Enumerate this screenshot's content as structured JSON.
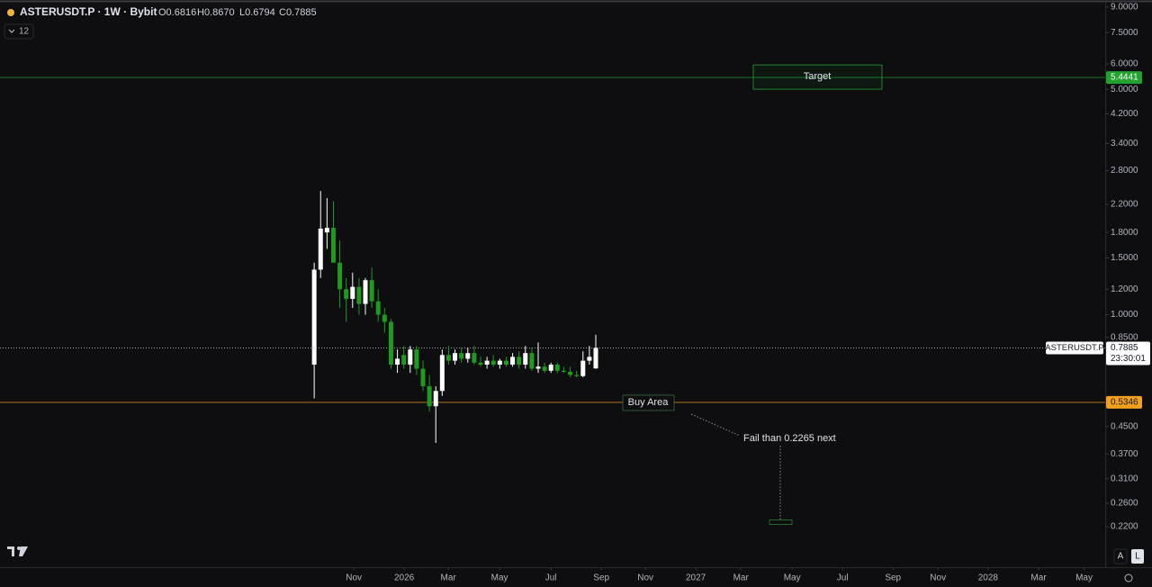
{
  "header": {
    "title": "ASTERUSDT.P · 1W · Bybit",
    "ohlc": [
      "O0.6816",
      "H0.8670",
      "L0.6794",
      "C0.7885"
    ],
    "indicator": "12"
  },
  "chart_data": {
    "type": "candlestick",
    "log_scale": true,
    "open": [
      0.7,
      1.38,
      1.8,
      1.86,
      1.45,
      1.2,
      1.12,
      1.22,
      1.08,
      1.28,
      1.1,
      1.0,
      0.95,
      0.7,
      0.75,
      0.7,
      0.78,
      0.68,
      0.6,
      0.52,
      0.58,
      0.75,
      0.72,
      0.76,
      0.73,
      0.76,
      0.71,
      0.7,
      0.72,
      0.7,
      0.72,
      0.7,
      0.74,
      0.7,
      0.76,
      0.68,
      0.69,
      0.67,
      0.7,
      0.67,
      0.665,
      0.65,
      0.645,
      0.72,
      0.6816
    ],
    "high": [
      1.45,
      2.42,
      2.3,
      2.25,
      1.7,
      1.3,
      1.35,
      1.3,
      1.3,
      1.4,
      1.2,
      1.05,
      0.97,
      0.78,
      0.8,
      0.8,
      0.8,
      0.72,
      0.65,
      0.6,
      0.78,
      0.8,
      0.78,
      0.79,
      0.79,
      0.8,
      0.74,
      0.74,
      0.75,
      0.73,
      0.74,
      0.76,
      0.77,
      0.8,
      0.79,
      0.82,
      0.71,
      0.71,
      0.71,
      0.69,
      0.69,
      0.67,
      0.77,
      0.8,
      0.867
    ],
    "low": [
      0.55,
      1.3,
      1.6,
      1.5,
      1.05,
      0.95,
      1.05,
      1.0,
      1.0,
      1.05,
      0.95,
      0.88,
      0.68,
      0.66,
      0.68,
      0.66,
      0.65,
      0.58,
      0.5,
      0.4,
      0.56,
      0.7,
      0.7,
      0.71,
      0.71,
      0.7,
      0.69,
      0.68,
      0.69,
      0.68,
      0.69,
      0.69,
      0.68,
      0.68,
      0.67,
      0.66,
      0.66,
      0.66,
      0.66,
      0.66,
      0.64,
      0.64,
      0.64,
      0.7,
      0.6794
    ],
    "close": [
      1.38,
      1.85,
      1.86,
      1.45,
      1.2,
      1.12,
      1.22,
      1.08,
      1.28,
      1.1,
      1.0,
      0.95,
      0.7,
      0.73,
      0.7,
      0.78,
      0.68,
      0.6,
      0.52,
      0.58,
      0.75,
      0.72,
      0.76,
      0.73,
      0.76,
      0.71,
      0.7,
      0.72,
      0.7,
      0.72,
      0.7,
      0.74,
      0.7,
      0.76,
      0.68,
      0.69,
      0.67,
      0.7,
      0.67,
      0.665,
      0.65,
      0.645,
      0.72,
      0.74,
      0.7885
    ],
    "up_color": "#ffffff",
    "down_color": "#1f9a1f",
    "xlim": [
      -49.1,
      123.6
    ],
    "xticks": [
      {
        "value": 6.19,
        "label": "Nov"
      },
      {
        "value": 14.06,
        "label": "2026"
      },
      {
        "value": 20.96,
        "label": "Mar"
      },
      {
        "value": 28.97,
        "label": "May"
      },
      {
        "value": 36.99,
        "label": "Jul"
      },
      {
        "value": 44.87,
        "label": "Sep"
      },
      {
        "value": 51.76,
        "label": "Nov"
      },
      {
        "value": 59.63,
        "label": "2027"
      },
      {
        "value": 66.67,
        "label": "Mar"
      },
      {
        "value": 74.68,
        "label": "May"
      },
      {
        "value": 82.56,
        "label": "Jul"
      },
      {
        "value": 90.44,
        "label": "Sep"
      },
      {
        "value": 97.47,
        "label": "Nov"
      },
      {
        "value": 105.3,
        "label": "2028"
      },
      {
        "value": 113.2,
        "label": "Mar"
      },
      {
        "value": 120.3,
        "label": "May"
      }
    ],
    "ylim": [
      0.1647,
      9.47
    ],
    "yticks": [
      {
        "value": 9,
        "label": "9.0000"
      },
      {
        "value": 7.5,
        "label": "7.5000"
      },
      {
        "value": 6,
        "label": "6.0000"
      },
      {
        "value": 5,
        "label": "5.0000"
      },
      {
        "value": 4.2,
        "label": "4.2000"
      },
      {
        "value": 3.4,
        "label": "3.4000"
      },
      {
        "value": 2.8,
        "label": "2.8000"
      },
      {
        "value": 2.2,
        "label": "2.2000"
      },
      {
        "value": 1.8,
        "label": "1.8000"
      },
      {
        "value": 1.5,
        "label": "1.5000"
      },
      {
        "value": 1.2,
        "label": "1.2000"
      },
      {
        "value": 1,
        "label": "1.0000"
      },
      {
        "value": 0.85,
        "label": "0.8500"
      },
      {
        "value": 0.45,
        "label": "0.4500"
      },
      {
        "value": 0.37,
        "label": "0.3700"
      },
      {
        "value": 0.31,
        "label": "0.3100"
      },
      {
        "value": 0.26,
        "label": "0.2600"
      },
      {
        "value": 0.22,
        "label": "0.2200"
      }
    ],
    "target": {
      "text": "Target",
      "price": 5.4441,
      "color": "#22a22e"
    },
    "buy_area": {
      "text": "Buy Area",
      "price": 0.5346,
      "color": "#f2a01e"
    },
    "fail": {
      "text": "Fail than 0.2265 next",
      "price": 0.2265
    },
    "last_price": {
      "symbol": "ASTERUSDT.P",
      "price": 0.7885,
      "countdown": "23:30:01"
    }
  }
}
